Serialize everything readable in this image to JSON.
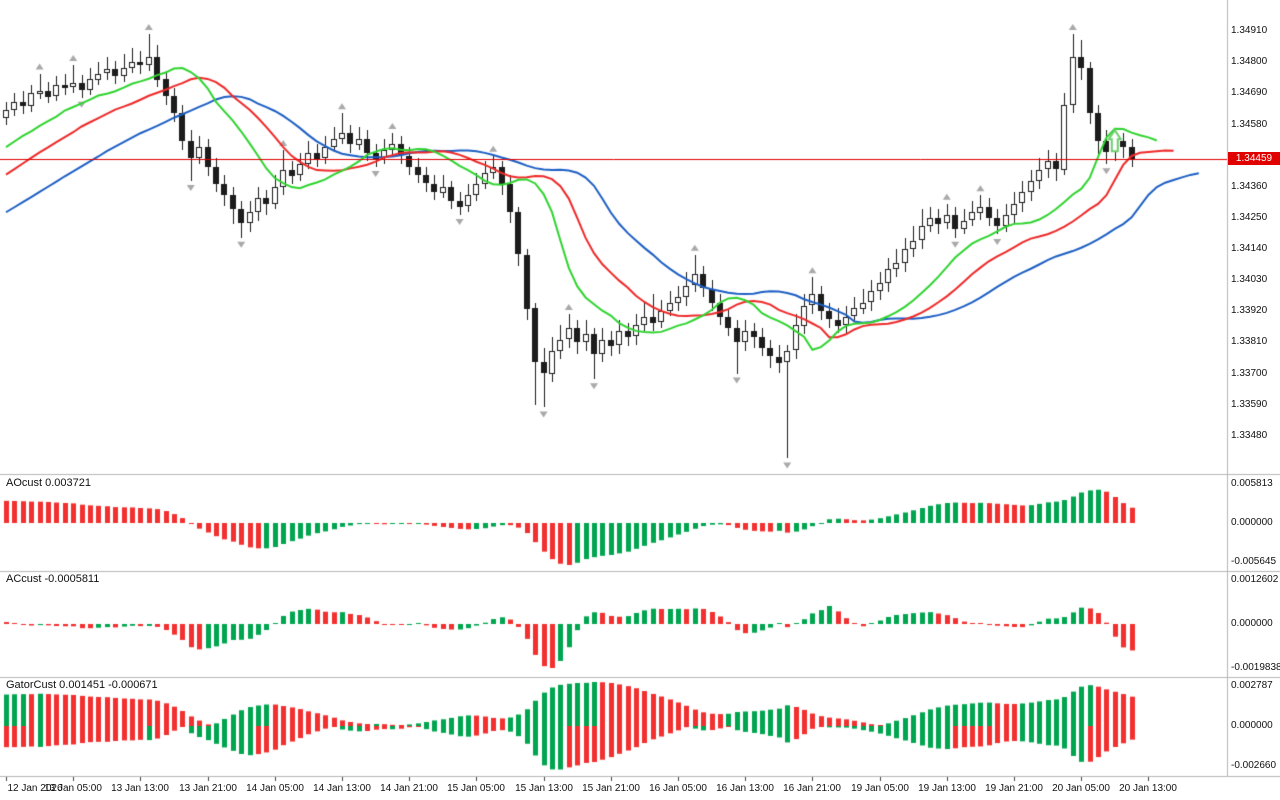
{
  "window": {
    "background": "#ffffff"
  },
  "chart_data": {
    "type": "candlestick",
    "current_price": "1.34459",
    "price_axis_ticks": [
      "1.34910",
      "1.34800",
      "1.34690",
      "1.34580",
      "1.34360",
      "1.34250",
      "1.34140",
      "1.34030",
      "1.33920",
      "1.33810",
      "1.33700",
      "1.33590",
      "1.33480"
    ],
    "time_labels": [
      "12 Jan 2026",
      "13 Jan 05:00",
      "13 Jan 13:00",
      "13 Jan 21:00",
      "14 Jan 05:00",
      "14 Jan 13:00",
      "14 Jan 21:00",
      "15 Jan 05:00",
      "15 Jan 13:00",
      "15 Jan 21:00",
      "16 Jan 05:00",
      "16 Jan 13:00",
      "16 Jan 21:00",
      "19 Jan 05:00",
      "19 Jan 13:00",
      "19 Jan 21:00",
      "20 Jan 05:00",
      "20 Jan 13:00"
    ],
    "bars_per_time_label": 8,
    "y_top_price": 1.3502,
    "y_bottom_price": 1.33345,
    "candle_colors": {
      "up_fill": "#ffffff",
      "down_fill": "#1c1c1c",
      "border": "#1c1c1c"
    },
    "overlays": {
      "alligator": {
        "jaw": {
          "period": 13,
          "shift": 8,
          "color": "#1d5fc4"
        },
        "teeth": {
          "period": 8,
          "shift": 5,
          "color": "#ef2929"
        },
        "lips": {
          "period": 5,
          "shift": 3,
          "color": "#2fd42f"
        }
      },
      "fractals_color": "#a9a9a9",
      "price_line_color": "#e00000",
      "signal_arrow": {
        "bar": 132,
        "tip_price": 1.3456,
        "direction": "up",
        "color": "#6fcf6f"
      }
    },
    "sub_panels": [
      {
        "id": "ao",
        "label": "AOcust 0.003721",
        "axis_max": "0.005813",
        "axis_zero": "0.000000",
        "axis_min": "-0.005645",
        "up_color": "#00a550",
        "down_color": "#f23030"
      },
      {
        "id": "ac",
        "label": "ACcust -0.0005811",
        "axis_max": "0.0012602",
        "axis_zero": "0.000000",
        "axis_min": "-0.0019838",
        "up_color": "#00a550",
        "down_color": "#f23030"
      },
      {
        "id": "gator",
        "label": "GatorCust 0.001451 -0.000671",
        "axis_max": "0.002787",
        "axis_zero": "0.000000",
        "axis_min": "-0.002660",
        "up_color": "#00a550",
        "down_color": "#f23030"
      }
    ],
    "indicator_seed_closes": [
      1.3396,
      1.3398,
      1.34,
      1.3402,
      1.3404,
      1.3406,
      1.3408,
      1.341,
      1.3412,
      1.3414,
      1.3416,
      1.3418,
      1.342,
      1.3422,
      1.3424,
      1.3426,
      1.3428,
      1.343,
      1.3432,
      1.3434,
      1.3436,
      1.3438,
      1.344,
      1.3442,
      1.3444,
      1.3446,
      1.3448,
      1.345,
      1.3452,
      1.3454,
      1.3456,
      1.3458,
      1.346,
      1.3462
    ],
    "candles": [
      [
        1.346,
        1.3466,
        1.3458,
        1.3463
      ],
      [
        1.3463,
        1.3469,
        1.3461,
        1.3466
      ],
      [
        1.3466,
        1.347,
        1.3462,
        1.34645
      ],
      [
        1.34645,
        1.3472,
        1.34625,
        1.3469
      ],
      [
        1.3469,
        1.3476,
        1.3467,
        1.347
      ],
      [
        1.347,
        1.3473,
        1.34655,
        1.3468
      ],
      [
        1.3468,
        1.3475,
        1.3466,
        1.3472
      ],
      [
        1.3472,
        1.3476,
        1.34685,
        1.3471
      ],
      [
        1.3471,
        1.3479,
        1.3469,
        1.34725
      ],
      [
        1.34725,
        1.34755,
        1.34675,
        1.347
      ],
      [
        1.347,
        1.3478,
        1.34685,
        1.3474
      ],
      [
        1.3474,
        1.348,
        1.3472,
        1.3476
      ],
      [
        1.3476,
        1.3482,
        1.3474,
        1.34775
      ],
      [
        1.34775,
        1.34805,
        1.34725,
        1.3475
      ],
      [
        1.3475,
        1.3483,
        1.3473,
        1.3478
      ],
      [
        1.3478,
        1.3485,
        1.3476,
        1.348
      ],
      [
        1.348,
        1.3484,
        1.3476,
        1.3479
      ],
      [
        1.3479,
        1.349,
        1.3477,
        1.3482
      ],
      [
        1.3482,
        1.3486,
        1.3471,
        1.3474
      ],
      [
        1.3474,
        1.3477,
        1.3465,
        1.3468
      ],
      [
        1.3468,
        1.3471,
        1.3459,
        1.3462
      ],
      [
        1.3462,
        1.3465,
        1.3449,
        1.3452
      ],
      [
        1.3452,
        1.3456,
        1.3438,
        1.3446
      ],
      [
        1.3446,
        1.3454,
        1.3444,
        1.345
      ],
      [
        1.345,
        1.3453,
        1.344,
        1.3443
      ],
      [
        1.3443,
        1.3446,
        1.3434,
        1.3437
      ],
      [
        1.3437,
        1.344,
        1.3429,
        1.3433
      ],
      [
        1.3433,
        1.3436,
        1.3423,
        1.3428
      ],
      [
        1.3428,
        1.3431,
        1.3418,
        1.3423
      ],
      [
        1.3423,
        1.3431,
        1.342,
        1.3427
      ],
      [
        1.3427,
        1.3436,
        1.3424,
        1.3432
      ],
      [
        1.3432,
        1.3435,
        1.3426,
        1.343
      ],
      [
        1.343,
        1.344,
        1.3428,
        1.3436
      ],
      [
        1.3436,
        1.3449,
        1.3433,
        1.3442
      ],
      [
        1.3442,
        1.3445,
        1.3437,
        1.344
      ],
      [
        1.344,
        1.3448,
        1.3438,
        1.3444
      ],
      [
        1.3444,
        1.3452,
        1.3442,
        1.3448
      ],
      [
        1.3448,
        1.3451,
        1.3443,
        1.3446
      ],
      [
        1.3446,
        1.3454,
        1.3444,
        1.345
      ],
      [
        1.345,
        1.3457,
        1.3448,
        1.3453
      ],
      [
        1.3453,
        1.3462,
        1.3451,
        1.3455
      ],
      [
        1.3455,
        1.3458,
        1.3448,
        1.3451
      ],
      [
        1.3451,
        1.3457,
        1.3449,
        1.3453
      ],
      [
        1.3453,
        1.3456,
        1.3445,
        1.3448
      ],
      [
        1.3448,
        1.3451,
        1.3443,
        1.3446
      ],
      [
        1.3446,
        1.3453,
        1.3444,
        1.3449
      ],
      [
        1.3449,
        1.3455,
        1.3447,
        1.3451
      ],
      [
        1.3451,
        1.3454,
        1.3444,
        1.3447
      ],
      [
        1.3447,
        1.345,
        1.344,
        1.3443
      ],
      [
        1.3443,
        1.3446,
        1.3437,
        1.344
      ],
      [
        1.344,
        1.3443,
        1.3434,
        1.3437
      ],
      [
        1.3437,
        1.344,
        1.3431,
        1.3434
      ],
      [
        1.3434,
        1.344,
        1.3432,
        1.3436
      ],
      [
        1.3436,
        1.3438,
        1.3428,
        1.3431
      ],
      [
        1.3431,
        1.3434,
        1.3426,
        1.3429
      ],
      [
        1.3429,
        1.3437,
        1.3427,
        1.3433
      ],
      [
        1.3433,
        1.3441,
        1.3431,
        1.3437
      ],
      [
        1.3437,
        1.3445,
        1.3435,
        1.3441
      ],
      [
        1.3441,
        1.3447,
        1.3439,
        1.3443
      ],
      [
        1.3443,
        1.3445,
        1.3433,
        1.3437
      ],
      [
        1.3437,
        1.344,
        1.3423,
        1.3427
      ],
      [
        1.3427,
        1.3429,
        1.3408,
        1.3412
      ],
      [
        1.3412,
        1.3414,
        1.3389,
        1.3393
      ],
      [
        1.3393,
        1.3395,
        1.3359,
        1.3374
      ],
      [
        1.3374,
        1.3379,
        1.3358,
        1.337
      ],
      [
        1.337,
        1.3383,
        1.3367,
        1.3378
      ],
      [
        1.3378,
        1.3387,
        1.3375,
        1.3382
      ],
      [
        1.3382,
        1.3391,
        1.3379,
        1.3386
      ],
      [
        1.3386,
        1.3389,
        1.3377,
        1.3381
      ],
      [
        1.3381,
        1.3389,
        1.3378,
        1.3384
      ],
      [
        1.3384,
        1.3386,
        1.3368,
        1.3377
      ],
      [
        1.3377,
        1.3386,
        1.3374,
        1.3382
      ],
      [
        1.3382,
        1.3385,
        1.3376,
        1.338
      ],
      [
        1.338,
        1.3389,
        1.3377,
        1.3385
      ],
      [
        1.3385,
        1.3388,
        1.338,
        1.3383
      ],
      [
        1.3383,
        1.3391,
        1.338,
        1.3387
      ],
      [
        1.3387,
        1.3395,
        1.3385,
        1.339
      ],
      [
        1.339,
        1.3398,
        1.3385,
        1.3388
      ],
      [
        1.3388,
        1.3396,
        1.3386,
        1.3392
      ],
      [
        1.3392,
        1.3399,
        1.339,
        1.3395
      ],
      [
        1.3395,
        1.3401,
        1.3392,
        1.3397
      ],
      [
        1.3397,
        1.3406,
        1.3394,
        1.3401
      ],
      [
        1.3401,
        1.3412,
        1.3399,
        1.3405
      ],
      [
        1.3405,
        1.3408,
        1.3397,
        1.34
      ],
      [
        1.34,
        1.3403,
        1.3392,
        1.3395
      ],
      [
        1.3395,
        1.3398,
        1.3387,
        1.339
      ],
      [
        1.339,
        1.3393,
        1.3383,
        1.3386
      ],
      [
        1.3386,
        1.3389,
        1.337,
        1.3381
      ],
      [
        1.3381,
        1.3389,
        1.3378,
        1.3385
      ],
      [
        1.3385,
        1.3388,
        1.3379,
        1.3383
      ],
      [
        1.3383,
        1.3386,
        1.3376,
        1.3379
      ],
      [
        1.3379,
        1.3382,
        1.3372,
        1.3376
      ],
      [
        1.3376,
        1.338,
        1.337,
        1.3374
      ],
      [
        1.3374,
        1.338,
        1.334,
        1.3378
      ],
      [
        1.3378,
        1.3391,
        1.3375,
        1.3387
      ],
      [
        1.3387,
        1.3398,
        1.3384,
        1.3394
      ],
      [
        1.3394,
        1.3404,
        1.3391,
        1.3398
      ],
      [
        1.3398,
        1.3401,
        1.3389,
        1.3392
      ],
      [
        1.3392,
        1.3395,
        1.3386,
        1.3389
      ],
      [
        1.3389,
        1.3393,
        1.3384,
        1.3387
      ],
      [
        1.3387,
        1.3394,
        1.3384,
        1.339
      ],
      [
        1.339,
        1.3397,
        1.3388,
        1.3393
      ],
      [
        1.3393,
        1.34,
        1.3391,
        1.3395
      ],
      [
        1.3395,
        1.3403,
        1.3392,
        1.3399
      ],
      [
        1.3399,
        1.3406,
        1.3396,
        1.3402
      ],
      [
        1.3402,
        1.3411,
        1.3399,
        1.3407
      ],
      [
        1.3407,
        1.3414,
        1.3404,
        1.3409
      ],
      [
        1.3409,
        1.3418,
        1.3406,
        1.3414
      ],
      [
        1.3414,
        1.3422,
        1.3411,
        1.3417
      ],
      [
        1.3417,
        1.3428,
        1.3414,
        1.3422
      ],
      [
        1.3422,
        1.3429,
        1.342,
        1.3425
      ],
      [
        1.3425,
        1.3428,
        1.3419,
        1.3423
      ],
      [
        1.3423,
        1.343,
        1.3421,
        1.3426
      ],
      [
        1.3426,
        1.3429,
        1.3418,
        1.3421
      ],
      [
        1.3421,
        1.3428,
        1.3419,
        1.3424
      ],
      [
        1.3424,
        1.3431,
        1.3422,
        1.3427
      ],
      [
        1.3427,
        1.3433,
        1.3424,
        1.3429
      ],
      [
        1.3429,
        1.3432,
        1.3422,
        1.3425
      ],
      [
        1.3425,
        1.3428,
        1.3419,
        1.3422
      ],
      [
        1.3422,
        1.343,
        1.342,
        1.3426
      ],
      [
        1.3426,
        1.3434,
        1.3423,
        1.343
      ],
      [
        1.343,
        1.3438,
        1.3427,
        1.3434
      ],
      [
        1.3434,
        1.3442,
        1.3431,
        1.3438
      ],
      [
        1.3438,
        1.3446,
        1.3435,
        1.3442
      ],
      [
        1.3442,
        1.3449,
        1.3439,
        1.3445
      ],
      [
        1.3445,
        1.3448,
        1.3438,
        1.3442
      ],
      [
        1.3442,
        1.3469,
        1.344,
        1.3465
      ],
      [
        1.3465,
        1.349,
        1.3462,
        1.3482
      ],
      [
        1.3482,
        1.3488,
        1.3474,
        1.3478
      ],
      [
        1.3478,
        1.348,
        1.3458,
        1.3462
      ],
      [
        1.3462,
        1.3465,
        1.3447,
        1.3452
      ],
      [
        1.3452,
        1.3456,
        1.3444,
        1.3448
      ],
      [
        1.3448,
        1.3456,
        1.3445,
        1.3452
      ],
      [
        1.3452,
        1.3455,
        1.3446,
        1.345
      ],
      [
        1.345,
        1.3453,
        1.3443,
        1.34459
      ]
    ]
  }
}
